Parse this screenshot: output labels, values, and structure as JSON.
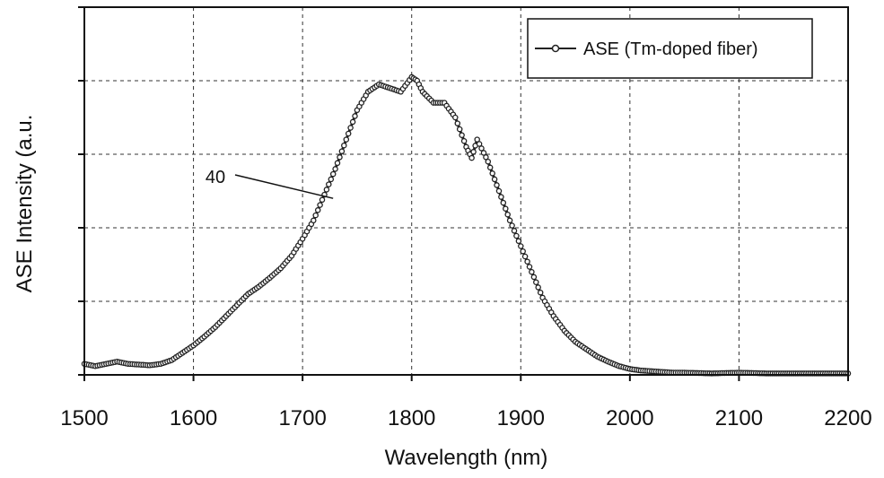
{
  "chart_data": {
    "type": "scatter",
    "title": "",
    "xlabel": "Wavelength (nm)",
    "ylabel": "ASE Intensity (a.u.",
    "xlim": [
      1500,
      2200
    ],
    "ylim": [
      0,
      5
    ],
    "xticks": [
      "1500",
      "1600",
      "1700",
      "1800",
      "1900",
      "2000",
      "2100",
      "2200"
    ],
    "xtick_values": [
      1500,
      1600,
      1700,
      1800,
      1900,
      2000,
      2100,
      2200
    ],
    "ytick_values": [
      0,
      1,
      2,
      3,
      4,
      5
    ],
    "grid": true,
    "legend_position": "top-right",
    "series": [
      {
        "name": "ASE (Tm-doped fiber)",
        "color": "#222222",
        "x": [
          1500,
          1510,
          1520,
          1530,
          1540,
          1550,
          1560,
          1570,
          1580,
          1590,
          1600,
          1610,
          1620,
          1630,
          1640,
          1650,
          1660,
          1670,
          1680,
          1690,
          1700,
          1710,
          1720,
          1730,
          1740,
          1750,
          1760,
          1770,
          1780,
          1790,
          1800,
          1805,
          1810,
          1820,
          1830,
          1840,
          1850,
          1855,
          1860,
          1870,
          1880,
          1890,
          1900,
          1910,
          1920,
          1930,
          1940,
          1950,
          1960,
          1970,
          1980,
          1990,
          2000,
          2010,
          2020,
          2030,
          2040,
          2050,
          2075,
          2100,
          2125,
          2150,
          2175,
          2200
        ],
        "y": [
          0.15,
          0.12,
          0.15,
          0.18,
          0.15,
          0.14,
          0.13,
          0.15,
          0.2,
          0.3,
          0.4,
          0.52,
          0.65,
          0.8,
          0.95,
          1.1,
          1.2,
          1.32,
          1.45,
          1.62,
          1.85,
          2.1,
          2.45,
          2.8,
          3.2,
          3.6,
          3.85,
          3.95,
          3.9,
          3.85,
          4.05,
          4.0,
          3.85,
          3.7,
          3.7,
          3.5,
          3.1,
          2.95,
          3.2,
          2.9,
          2.5,
          2.1,
          1.75,
          1.4,
          1.05,
          0.8,
          0.6,
          0.45,
          0.35,
          0.25,
          0.18,
          0.12,
          0.08,
          0.06,
          0.05,
          0.04,
          0.03,
          0.03,
          0.02,
          0.03,
          0.02,
          0.02,
          0.02,
          0.02
        ]
      }
    ],
    "annotations": [
      {
        "text": "40",
        "x": 1728,
        "y": 2.4
      }
    ]
  }
}
